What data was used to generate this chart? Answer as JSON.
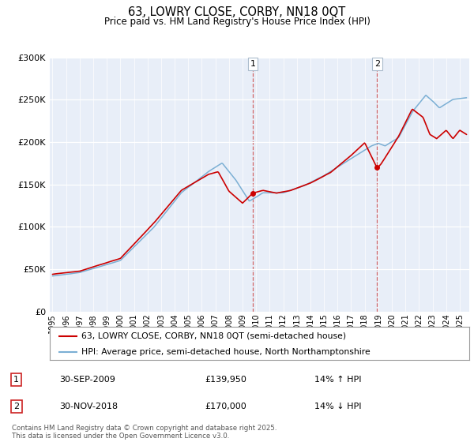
{
  "title": "63, LOWRY CLOSE, CORBY, NN18 0QT",
  "subtitle": "Price paid vs. HM Land Registry's House Price Index (HPI)",
  "legend_line1": "63, LOWRY CLOSE, CORBY, NN18 0QT (semi-detached house)",
  "legend_line2": "HPI: Average price, semi-detached house, North Northamptonshire",
  "annotation1_label": "1",
  "annotation1_date": "30-SEP-2009",
  "annotation1_price": "£139,950",
  "annotation1_hpi": "14% ↑ HPI",
  "annotation2_label": "2",
  "annotation2_date": "30-NOV-2018",
  "annotation2_price": "£170,000",
  "annotation2_hpi": "14% ↓ HPI",
  "footer": "Contains HM Land Registry data © Crown copyright and database right 2025.\nThis data is licensed under the Open Government Licence v3.0.",
  "red_color": "#cc0000",
  "blue_color": "#7bafd4",
  "vline1_x": 2009.75,
  "vline2_x": 2018.92,
  "ylim": [
    0,
    300000
  ],
  "xlim_start": 1994.8,
  "xlim_end": 2025.7,
  "background_color": "#e8eef8"
}
